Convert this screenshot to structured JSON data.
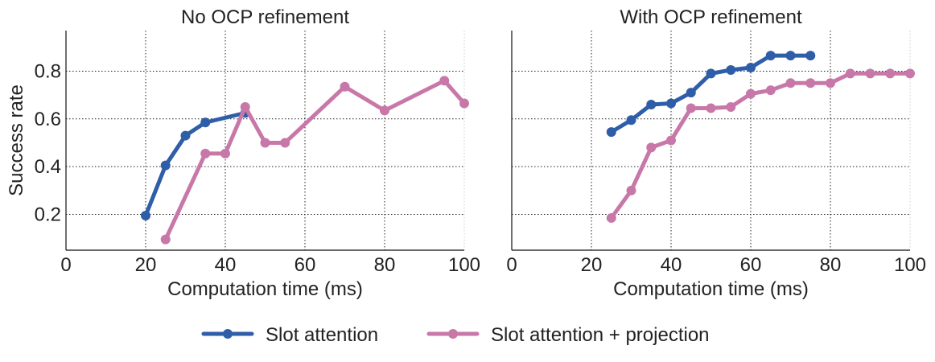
{
  "figure": {
    "legend": [
      {
        "name": "Slot attention",
        "color": "#2f5ea8"
      },
      {
        "name": "Slot attention + projection",
        "color": "#c878a8"
      }
    ]
  },
  "chart_data": [
    {
      "type": "line",
      "title": "No OCP refinement",
      "xlabel": "Computation time (ms)",
      "ylabel": "Success rate",
      "xlim": [
        0,
        100
      ],
      "ylim": [
        0.05,
        0.97
      ],
      "xticks": [
        0,
        20,
        40,
        60,
        80,
        100
      ],
      "xtick_labels": [
        "0",
        "20",
        "40",
        "60",
        "80",
        "100"
      ],
      "yticks": [
        0.2,
        0.4,
        0.6,
        0.8
      ],
      "ytick_labels": [
        "0.2",
        "0.4",
        "0.6",
        "0.8"
      ],
      "grid": true,
      "series": [
        {
          "name": "Slot attention",
          "color": "#2f5ea8",
          "x": [
            20,
            25,
            30,
            35,
            45
          ],
          "y": [
            0.195,
            0.405,
            0.53,
            0.585,
            0.625
          ]
        },
        {
          "name": "Slot attention + projection",
          "color": "#c878a8",
          "x": [
            25,
            35,
            40,
            45,
            50,
            55,
            70,
            80,
            95,
            100
          ],
          "y": [
            0.095,
            0.455,
            0.455,
            0.65,
            0.5,
            0.5,
            0.735,
            0.635,
            0.76,
            0.665
          ]
        }
      ]
    },
    {
      "type": "line",
      "title": "With OCP refinement",
      "xlabel": "Computation time (ms)",
      "ylabel": "",
      "xlim": [
        0,
        100
      ],
      "ylim": [
        0.05,
        0.97
      ],
      "xticks": [
        0,
        20,
        40,
        60,
        80,
        100
      ],
      "xtick_labels": [
        "0",
        "20",
        "40",
        "60",
        "80",
        "100"
      ],
      "yticks": [
        0.2,
        0.4,
        0.6,
        0.8
      ],
      "ytick_labels": [],
      "grid": true,
      "series": [
        {
          "name": "Slot attention",
          "color": "#2f5ea8",
          "x": [
            25,
            30,
            35,
            40,
            45,
            50,
            55,
            60,
            65,
            70,
            75
          ],
          "y": [
            0.545,
            0.595,
            0.66,
            0.665,
            0.71,
            0.79,
            0.805,
            0.815,
            0.865,
            0.865,
            0.865
          ]
        },
        {
          "name": "Slot attention + projection",
          "color": "#c878a8",
          "x": [
            25,
            30,
            35,
            40,
            45,
            50,
            55,
            60,
            65,
            70,
            75,
            80,
            85,
            90,
            95,
            100
          ],
          "y": [
            0.185,
            0.3,
            0.48,
            0.51,
            0.645,
            0.645,
            0.65,
            0.705,
            0.72,
            0.75,
            0.75,
            0.75,
            0.79,
            0.79,
            0.79,
            0.79
          ]
        }
      ]
    }
  ]
}
